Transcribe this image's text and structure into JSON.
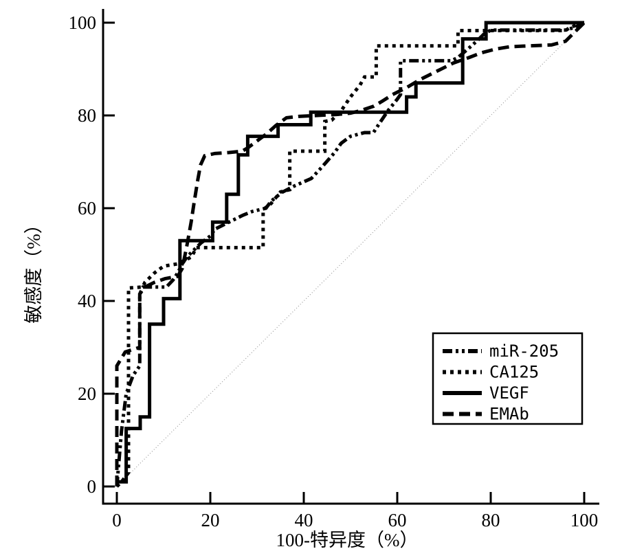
{
  "chart_data": {
    "type": "line",
    "title": "",
    "xlabel": "100-特异度（%）",
    "ylabel": "敏感度（%）",
    "xlim": [
      0,
      100
    ],
    "ylim": [
      0,
      100
    ],
    "x_ticks": [
      0,
      20,
      40,
      60,
      80,
      100
    ],
    "y_ticks": [
      0,
      20,
      40,
      60,
      80,
      100
    ],
    "grid": false,
    "legend_position": "lower-right",
    "colors": {
      "curves": "#000000",
      "reference": "#999999",
      "background": "#ffffff"
    },
    "reference_line": {
      "name": "chance-diagonal",
      "points": [
        [
          0,
          0
        ],
        [
          100,
          100
        ]
      ]
    },
    "series": [
      {
        "name": "miR-205",
        "style": "dash-dot-dot",
        "points": [
          [
            0,
            0
          ],
          [
            1,
            12
          ],
          [
            2,
            20
          ],
          [
            3.5,
            24
          ],
          [
            4.9,
            26
          ],
          [
            4.9,
            41.5
          ],
          [
            5.6,
            43
          ],
          [
            10.6,
            43
          ],
          [
            12,
            44.5
          ],
          [
            13,
            46
          ],
          [
            14,
            48
          ],
          [
            15,
            49.5
          ],
          [
            16.5,
            51
          ],
          [
            18,
            52.5
          ],
          [
            20,
            54
          ],
          [
            21,
            55.5
          ],
          [
            23,
            56.5
          ],
          [
            25,
            57.5
          ],
          [
            27,
            58.5
          ],
          [
            29,
            59.3
          ],
          [
            31.9,
            60
          ],
          [
            33,
            61.5
          ],
          [
            35.3,
            63.4
          ],
          [
            38,
            64.8
          ],
          [
            41.6,
            66.4
          ],
          [
            44,
            69
          ],
          [
            46.6,
            72
          ],
          [
            48,
            74
          ],
          [
            50,
            75.5
          ],
          [
            53,
            76.3
          ],
          [
            54.9,
            76.3
          ],
          [
            56,
            78
          ],
          [
            58,
            81
          ],
          [
            60,
            83.5
          ],
          [
            60.7,
            84.5
          ],
          [
            60.7,
            91.8
          ],
          [
            71.6,
            91.8
          ],
          [
            73,
            92.5
          ],
          [
            75.3,
            94.5
          ],
          [
            77,
            96
          ],
          [
            78.5,
            97.5
          ],
          [
            80,
            98.4
          ],
          [
            96,
            98.4
          ],
          [
            98,
            99
          ],
          [
            100,
            100
          ]
        ]
      },
      {
        "name": "CA125",
        "style": "dotted",
        "points": [
          [
            0,
            0
          ],
          [
            1,
            1
          ],
          [
            2.5,
            3
          ],
          [
            2.5,
            42.8
          ],
          [
            5.5,
            43
          ],
          [
            6,
            44
          ],
          [
            8,
            46
          ],
          [
            10,
            47.5
          ],
          [
            13,
            48
          ],
          [
            16,
            49.5
          ],
          [
            17,
            51.5
          ],
          [
            31.3,
            51.5
          ],
          [
            31.3,
            59.7
          ],
          [
            33,
            61
          ],
          [
            35,
            63.5
          ],
          [
            37,
            64
          ],
          [
            37,
            72.3
          ],
          [
            44.5,
            72.3
          ],
          [
            44.5,
            78.7
          ],
          [
            46,
            79
          ],
          [
            48,
            81
          ],
          [
            50,
            84
          ],
          [
            52,
            86.5
          ],
          [
            53,
            88.3
          ],
          [
            55.5,
            88.3
          ],
          [
            55.5,
            95
          ],
          [
            73,
            95
          ],
          [
            73,
            98.3
          ],
          [
            96,
            98.3
          ],
          [
            97,
            99
          ],
          [
            100,
            100
          ]
        ]
      },
      {
        "name": "VEGF",
        "style": "solid",
        "points": [
          [
            0,
            0
          ],
          [
            0,
            1
          ],
          [
            2,
            1
          ],
          [
            2,
            12.5
          ],
          [
            5,
            12.5
          ],
          [
            5,
            15
          ],
          [
            7,
            15
          ],
          [
            7,
            35
          ],
          [
            10,
            35
          ],
          [
            10,
            40.5
          ],
          [
            13.5,
            40.5
          ],
          [
            13.5,
            53
          ],
          [
            20.5,
            53
          ],
          [
            20.5,
            57
          ],
          [
            23.5,
            57
          ],
          [
            23.5,
            63
          ],
          [
            26,
            63
          ],
          [
            26,
            71.5
          ],
          [
            28,
            71.5
          ],
          [
            28,
            75.5
          ],
          [
            34.5,
            75.5
          ],
          [
            34.5,
            78
          ],
          [
            41.5,
            78
          ],
          [
            41.5,
            80.7
          ],
          [
            62,
            80.7
          ],
          [
            62,
            84
          ],
          [
            64,
            84
          ],
          [
            64,
            87
          ],
          [
            74,
            87
          ],
          [
            74,
            96.5
          ],
          [
            79,
            96.5
          ],
          [
            79,
            100
          ],
          [
            100,
            100
          ]
        ]
      },
      {
        "name": "EMAb",
        "style": "dashed",
        "points": [
          [
            0,
            0
          ],
          [
            0,
            26
          ],
          [
            1.8,
            29
          ],
          [
            4.9,
            30
          ],
          [
            4.9,
            41.5
          ],
          [
            6,
            43
          ],
          [
            8,
            44
          ],
          [
            10.3,
            44.8
          ],
          [
            13,
            45.3
          ],
          [
            14,
            47
          ],
          [
            15,
            52
          ],
          [
            15.9,
            57
          ],
          [
            16.5,
            61
          ],
          [
            17.3,
            66
          ],
          [
            17.9,
            69.3
          ],
          [
            18.8,
            71.3
          ],
          [
            21,
            71.8
          ],
          [
            24,
            72
          ],
          [
            26.8,
            72.3
          ],
          [
            28,
            73
          ],
          [
            30,
            74.5
          ],
          [
            32,
            76
          ],
          [
            34,
            77.8
          ],
          [
            36.3,
            79.5
          ],
          [
            39,
            79.8
          ],
          [
            43,
            80
          ],
          [
            47,
            80.2
          ],
          [
            50,
            80.5
          ],
          [
            52,
            81
          ],
          [
            55,
            82
          ],
          [
            57,
            83.2
          ],
          [
            59,
            84.5
          ],
          [
            62,
            86
          ],
          [
            65,
            87.8
          ],
          [
            67,
            88.8
          ],
          [
            69,
            89.8
          ],
          [
            72,
            91.3
          ],
          [
            75.4,
            92.5
          ],
          [
            78,
            93.5
          ],
          [
            81,
            94.3
          ],
          [
            84,
            94.8
          ],
          [
            88,
            95
          ],
          [
            93,
            95.2
          ],
          [
            96,
            96
          ],
          [
            98,
            98
          ],
          [
            100,
            100
          ]
        ]
      }
    ],
    "legend": {
      "items": [
        "miR-205",
        "CA125",
        "VEGF",
        "EMAb"
      ]
    }
  }
}
